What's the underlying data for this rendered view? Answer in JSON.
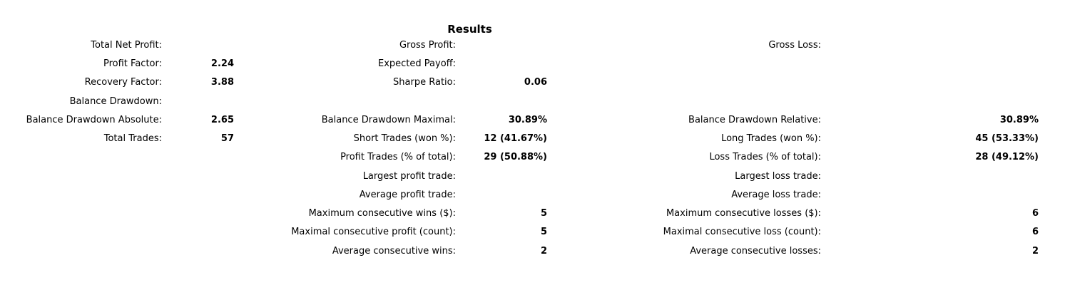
{
  "title": "Results",
  "rows": [
    {
      "c1": {
        "label": "Total Net Profit:",
        "value": ""
      },
      "c2": {
        "label": "Gross Profit:",
        "value": ""
      },
      "c3": {
        "label": "Gross Loss:",
        "value": ""
      }
    },
    {
      "c1": {
        "label": "Profit Factor:",
        "value": "2.24"
      },
      "c2": {
        "label": "Expected Payoff:",
        "value": ""
      },
      "c3": {
        "label": "",
        "value": ""
      }
    },
    {
      "c1": {
        "label": "Recovery Factor:",
        "value": "3.88"
      },
      "c2": {
        "label": "Sharpe Ratio:",
        "value": "0.06"
      },
      "c3": {
        "label": "",
        "value": ""
      }
    },
    {
      "c1": {
        "label": "Balance Drawdown:",
        "value": ""
      },
      "c2": {
        "label": "",
        "value": ""
      },
      "c3": {
        "label": "",
        "value": ""
      }
    },
    {
      "c1": {
        "label": "Balance Drawdown Absolute:",
        "value": "2.65"
      },
      "c2": {
        "label": "Balance Drawdown Maximal:",
        "value": "30.89%"
      },
      "c3": {
        "label": "Balance Drawdown Relative:",
        "value": "30.89%"
      }
    },
    {
      "c1": {
        "label": "Total Trades:",
        "value": "57"
      },
      "c2": {
        "label": "Short Trades (won %):",
        "value": "12 (41.67%)"
      },
      "c3": {
        "label": "Long Trades (won %):",
        "value": "45 (53.33%)"
      }
    },
    {
      "c1": {
        "label": "",
        "value": ""
      },
      "c2": {
        "label": "Profit Trades (% of total):",
        "value": "29 (50.88%)"
      },
      "c3": {
        "label": "Loss Trades (% of total):",
        "value": "28 (49.12%)"
      }
    },
    {
      "c1": {
        "label": "",
        "value": ""
      },
      "c2": {
        "label": "Largest profit trade:",
        "value": ""
      },
      "c3": {
        "label": "Largest loss trade:",
        "value": ""
      }
    },
    {
      "c1": {
        "label": "",
        "value": ""
      },
      "c2": {
        "label": "Average profit trade:",
        "value": ""
      },
      "c3": {
        "label": "Average loss trade:",
        "value": ""
      }
    },
    {
      "c1": {
        "label": "",
        "value": ""
      },
      "c2": {
        "label": "Maximum consecutive wins ($):",
        "value": "5"
      },
      "c3": {
        "label": "Maximum consecutive losses ($):",
        "value": "6"
      }
    },
    {
      "c1": {
        "label": "",
        "value": ""
      },
      "c2": {
        "label": "Maximal consecutive profit (count):",
        "value": "5"
      },
      "c3": {
        "label": "Maximal consecutive loss (count):",
        "value": "6"
      }
    },
    {
      "c1": {
        "label": "",
        "value": ""
      },
      "c2": {
        "label": "Average consecutive wins:",
        "value": "2"
      },
      "c3": {
        "label": "Average consecutive losses:",
        "value": "2"
      }
    }
  ]
}
